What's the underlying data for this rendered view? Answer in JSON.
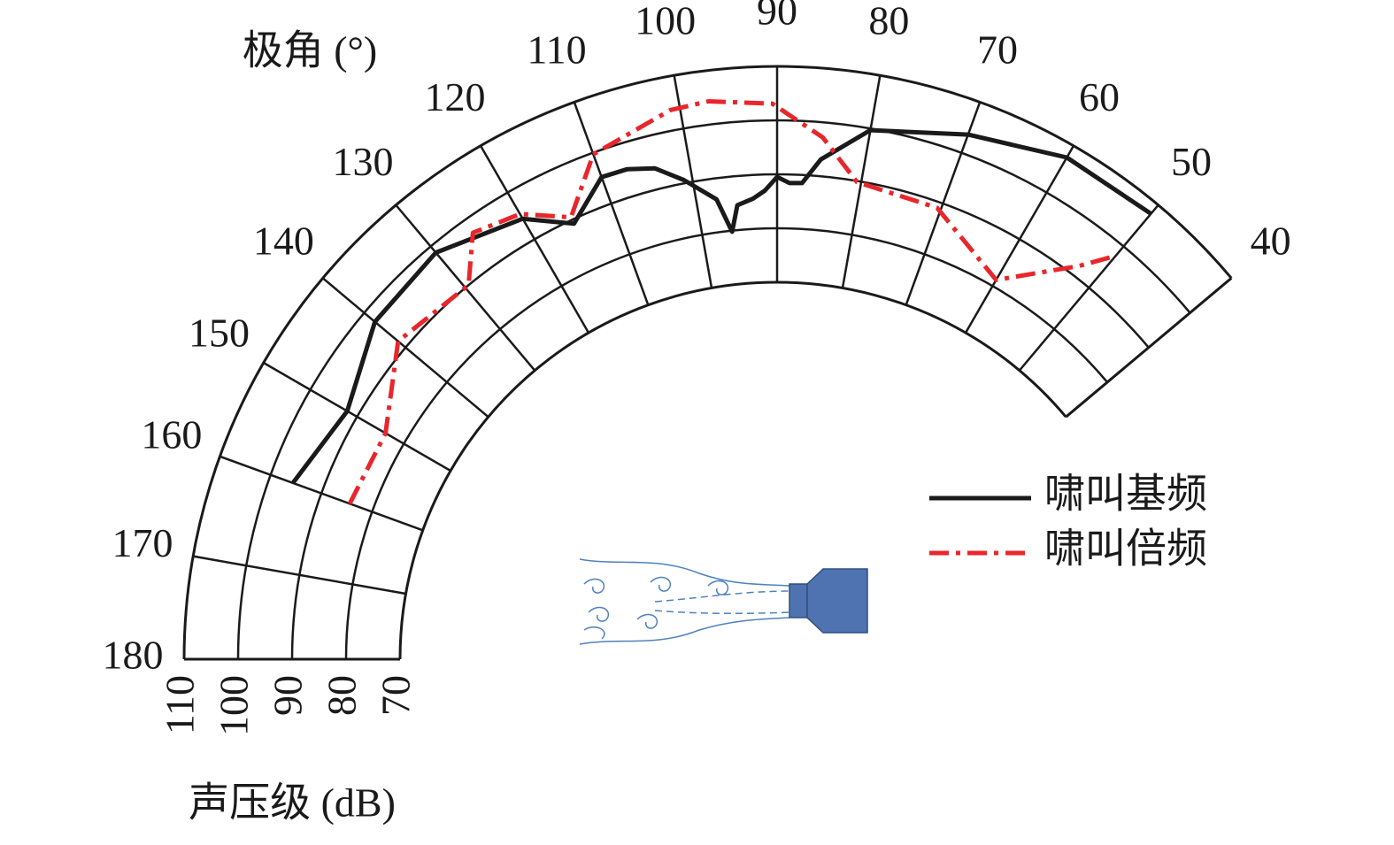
{
  "chart_data": {
    "type": "polar",
    "theta_label": "极角 (°)",
    "r_label": "声压级 (dB)",
    "xlim": [
      40,
      180
    ],
    "xticks": [
      40,
      50,
      60,
      70,
      80,
      90,
      100,
      110,
      120,
      130,
      140,
      150,
      160,
      170,
      180
    ],
    "ylim": [
      70,
      110
    ],
    "yticks": [
      70,
      80,
      90,
      100,
      110
    ],
    "grid": true,
    "legend": "right",
    "series": [
      {
        "name": "啸叫基频",
        "color": "#1a1a1a",
        "dash": "solid",
        "x": [
          160,
          150,
          140,
          130,
          120,
          115,
          110,
          107,
          104,
          101,
          97.5,
          96,
          95,
          93,
          91.5,
          90,
          88.5,
          87,
          85,
          80,
          70,
          60,
          50
        ],
        "values": [
          95.6,
          92.1,
          97.4,
          98.5,
          94.4,
          89.2,
          95.2,
          95.1,
          93.9,
          90.6,
          86.1,
          79.8,
          84.6,
          85.6,
          87,
          89.5,
          88.4,
          88.5,
          93.1,
          99.7,
          103.6,
          107.5,
          107.9
        ]
      },
      {
        "name": "啸叫倍频",
        "color": "#e8262b",
        "dash": "dashdot",
        "x": [
          160,
          150,
          140,
          129.5,
          125.5,
          120,
          115,
          110,
          101,
          97,
          90.5,
          85,
          80.5,
          70.5,
          60,
          52.5,
          50
        ],
        "values": [
          84.4,
          83.9,
          91.8,
          90,
          97.2,
          95.4,
          90.5,
          99.7,
          103.8,
          104.3,
          103.1,
          97.2,
          89.8,
          88.9,
          81.3,
          92,
          97.7
        ]
      }
    ]
  }
}
